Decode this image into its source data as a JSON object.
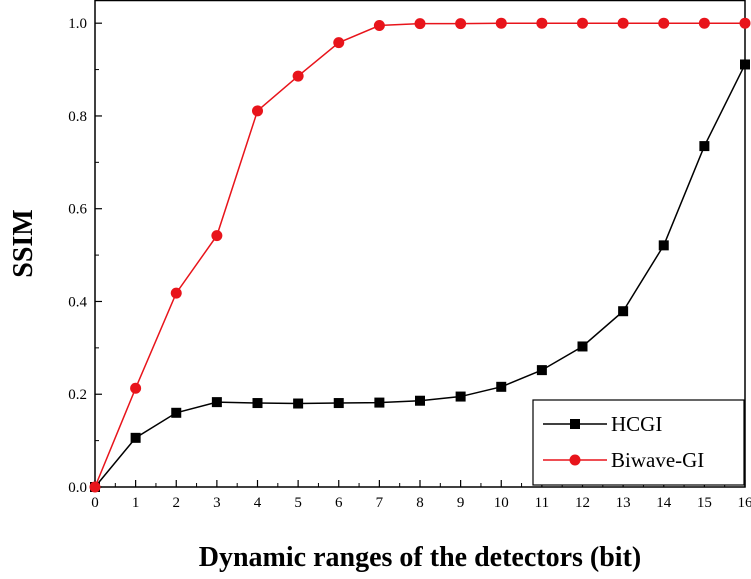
{
  "chart_data": {
    "type": "line",
    "title": "",
    "xlabel": "Dynamic ranges of the detectors (bit)",
    "ylabel": "SSIM",
    "xlim": [
      0,
      16
    ],
    "ylim": [
      0,
      1.05
    ],
    "x_ticks": [
      0,
      1,
      2,
      3,
      4,
      5,
      6,
      7,
      8,
      9,
      10,
      11,
      12,
      13,
      14,
      15,
      16
    ],
    "y_ticks": [
      "0.0",
      "0.2",
      "0.4",
      "0.6",
      "0.8",
      "1.0"
    ],
    "y_tick_values": [
      0,
      0.2,
      0.4,
      0.6,
      0.8,
      1.0
    ],
    "grid": false,
    "legend_position": "bottom-right",
    "x": [
      0,
      1,
      2,
      3,
      4,
      5,
      6,
      7,
      8,
      9,
      10,
      11,
      12,
      13,
      14,
      15,
      16
    ],
    "series": [
      {
        "name": "HCGI",
        "color": "#000000",
        "marker": "square",
        "values": [
          0.0,
          0.106,
          0.16,
          0.183,
          0.181,
          0.18,
          0.181,
          0.182,
          0.186,
          0.195,
          0.216,
          0.252,
          0.303,
          0.379,
          0.521,
          0.735,
          0.911
        ]
      },
      {
        "name": "Biwave-GI",
        "color": "#e8141b",
        "marker": "circle",
        "values": [
          0.0,
          0.213,
          0.418,
          0.542,
          0.811,
          0.886,
          0.958,
          0.995,
          0.999,
          0.999,
          1.0,
          1.0,
          1.0,
          1.0,
          1.0,
          1.0,
          1.0
        ]
      }
    ]
  }
}
